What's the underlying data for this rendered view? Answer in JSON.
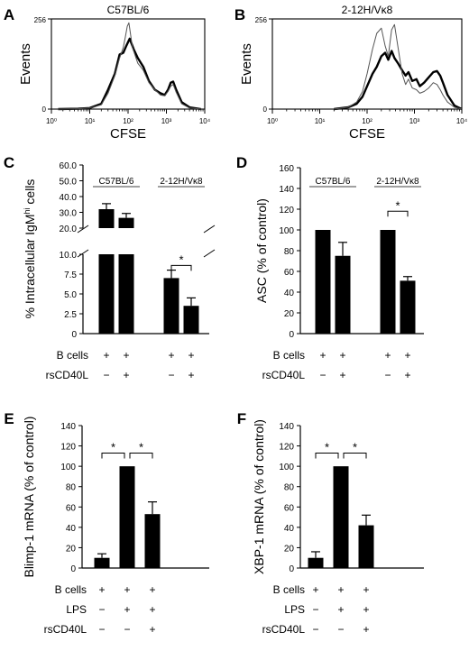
{
  "chart_data": [
    {
      "id": "A",
      "type": "line",
      "panel_letter": "A",
      "title": "C57BL/6",
      "xlabel": "CFSE",
      "ylabel": "Events",
      "x_scale": "log",
      "xlim": [
        1,
        10000
      ],
      "ylim": [
        0,
        256
      ],
      "x_ticks": [
        "10⁰",
        "10¹",
        "10²",
        "10³",
        "10⁴"
      ],
      "y_ticks": [
        "0",
        "256"
      ],
      "series": [
        {
          "style": "thick",
          "x": [
            1.5,
            5,
            10,
            20,
            30,
            45,
            60,
            75,
            90,
            110,
            140,
            180,
            250,
            350,
            500,
            700,
            900,
            1100,
            1300,
            1500,
            1800,
            2500,
            4000,
            8000
          ],
          "y": [
            0,
            1,
            3,
            15,
            55,
            100,
            155,
            160,
            180,
            200,
            170,
            145,
            120,
            80,
            55,
            45,
            40,
            55,
            75,
            78,
            55,
            20,
            5,
            0
          ]
        },
        {
          "style": "thin",
          "x": [
            1.5,
            5,
            10,
            20,
            30,
            45,
            60,
            75,
            85,
            95,
            105,
            115,
            130,
            150,
            180,
            250,
            350,
            500,
            700,
            900,
            1100,
            1300,
            1500,
            1800,
            2500,
            4000,
            8000
          ],
          "y": [
            0,
            1,
            3,
            12,
            45,
            95,
            145,
            175,
            205,
            235,
            245,
            215,
            175,
            155,
            130,
            110,
            75,
            55,
            40,
            38,
            50,
            65,
            70,
            48,
            15,
            3,
            0
          ]
        }
      ]
    },
    {
      "id": "B",
      "type": "line",
      "panel_letter": "B",
      "title": "2-12H/Vκ8",
      "xlabel": "CFSE",
      "ylabel": "Events",
      "x_scale": "log",
      "xlim": [
        1,
        10000
      ],
      "ylim": [
        0,
        256
      ],
      "x_ticks": [
        "10⁰",
        "10¹",
        "10²",
        "10³",
        "10⁴"
      ],
      "y_ticks": [
        "0",
        "256"
      ],
      "series": [
        {
          "style": "thick",
          "x": [
            20,
            40,
            60,
            80,
            100,
            130,
            160,
            200,
            240,
            280,
            330,
            380,
            450,
            550,
            650,
            750,
            900,
            1100,
            1300,
            1600,
            2000,
            2500,
            3000,
            3500,
            4000,
            5000,
            7000,
            10000
          ],
          "y": [
            0,
            5,
            15,
            35,
            65,
            100,
            120,
            150,
            160,
            140,
            165,
            145,
            130,
            110,
            95,
            105,
            80,
            85,
            65,
            75,
            90,
            105,
            108,
            95,
            75,
            40,
            10,
            0
          ]
        },
        {
          "style": "thin",
          "x": [
            20,
            40,
            60,
            80,
            100,
            130,
            160,
            200,
            240,
            280,
            330,
            380,
            450,
            550,
            650,
            750,
            900,
            1100,
            1300,
            1600,
            2000,
            2500,
            3000,
            3500,
            4000,
            5000,
            7000,
            10000
          ],
          "y": [
            0,
            5,
            20,
            50,
            100,
            170,
            215,
            230,
            180,
            150,
            225,
            240,
            175,
            100,
            70,
            85,
            60,
            55,
            45,
            50,
            60,
            75,
            70,
            55,
            40,
            20,
            5,
            0
          ]
        }
      ]
    },
    {
      "id": "C",
      "type": "bar",
      "panel_letter": "C",
      "ylabel": "% Intracellular IgMhi cells",
      "y_axis_break": [
        10,
        20
      ],
      "y_ticks_lower": [
        "0",
        "2.5",
        "5.0",
        "7.5",
        "10.0"
      ],
      "y_ticks_upper": [
        "20.0",
        "30.0",
        "40.0",
        "50.0",
        "60.0"
      ],
      "groups": [
        "C57BL/6",
        "2-12H/Vκ8"
      ],
      "values": [
        32,
        26.5,
        7,
        3.5
      ],
      "errors": [
        3.5,
        2.8,
        1.0,
        1.0
      ],
      "significance": [
        "*"
      ],
      "row_labels": [
        "B cells",
        "rsCD40L"
      ],
      "row_signs": [
        [
          "+",
          "+",
          "+",
          "+"
        ],
        [
          "−",
          "+",
          "−",
          "+"
        ]
      ]
    },
    {
      "id": "D",
      "type": "bar",
      "panel_letter": "D",
      "ylabel": "ASC (% of control)",
      "ylim": [
        0,
        160
      ],
      "y_ticks": [
        "0",
        "20",
        "40",
        "60",
        "80",
        "100",
        "120",
        "140",
        "160"
      ],
      "groups": [
        "C57BL/6",
        "2-12H/Vκ8"
      ],
      "values": [
        100,
        75,
        100,
        51
      ],
      "errors": [
        0,
        13,
        0,
        4
      ],
      "significance": [
        "*"
      ],
      "row_labels": [
        "B cells",
        "rsCD40L"
      ],
      "row_signs": [
        [
          "+",
          "+",
          "+",
          "+"
        ],
        [
          "−",
          "+",
          "−",
          "+"
        ]
      ]
    },
    {
      "id": "E",
      "type": "bar",
      "panel_letter": "E",
      "ylabel": "Blimp-1 mRNA (% of control)",
      "ylim": [
        0,
        140
      ],
      "y_ticks": [
        "0",
        "20",
        "40",
        "60",
        "80",
        "100",
        "120",
        "140"
      ],
      "values": [
        10,
        100,
        53
      ],
      "errors": [
        4,
        0,
        12
      ],
      "significance": [
        "*",
        "*"
      ],
      "row_labels": [
        "B cells",
        "LPS",
        "rsCD40L"
      ],
      "row_signs": [
        [
          "+",
          "+",
          "+"
        ],
        [
          "−",
          "+",
          "+"
        ],
        [
          "−",
          "−",
          "+"
        ]
      ]
    },
    {
      "id": "F",
      "type": "bar",
      "panel_letter": "F",
      "ylabel": "XBP-1 mRNA (% of control)",
      "ylim": [
        0,
        140
      ],
      "y_ticks": [
        "0",
        "20",
        "40",
        "60",
        "80",
        "100",
        "120",
        "140"
      ],
      "values": [
        10,
        100,
        42
      ],
      "errors": [
        6,
        0,
        10
      ],
      "significance": [
        "*",
        "*"
      ],
      "row_labels": [
        "B cells",
        "LPS",
        "rsCD40L"
      ],
      "row_signs": [
        [
          "+",
          "+",
          "+"
        ],
        [
          "−",
          "+",
          "+"
        ],
        [
          "−",
          "−",
          "+"
        ]
      ]
    }
  ]
}
